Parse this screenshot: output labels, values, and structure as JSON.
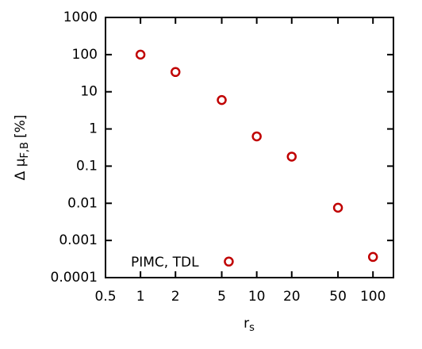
{
  "chart_data": {
    "type": "scatter",
    "log_x": true,
    "log_y": true,
    "xlabel": [
      "r",
      "s"
    ],
    "ylabel": [
      "Δ μ",
      "F,B",
      "[%]"
    ],
    "annotation": "PIMC, TDL",
    "x": [
      1,
      2,
      5,
      10,
      20,
      50,
      100,
      5.75
    ],
    "values": [
      100,
      34,
      6,
      0.63,
      0.18,
      0.0076,
      0.00036,
      0.00027
    ],
    "color": "#c00000",
    "xlim": [
      0.5,
      150
    ],
    "xticks": [
      0.5,
      1,
      2,
      5,
      10,
      20,
      50,
      100
    ],
    "ylim": [
      0.0001,
      1000
    ],
    "yticks": [
      0.0001,
      0.001,
      0.01,
      0.1,
      1,
      10,
      100,
      1000
    ]
  }
}
